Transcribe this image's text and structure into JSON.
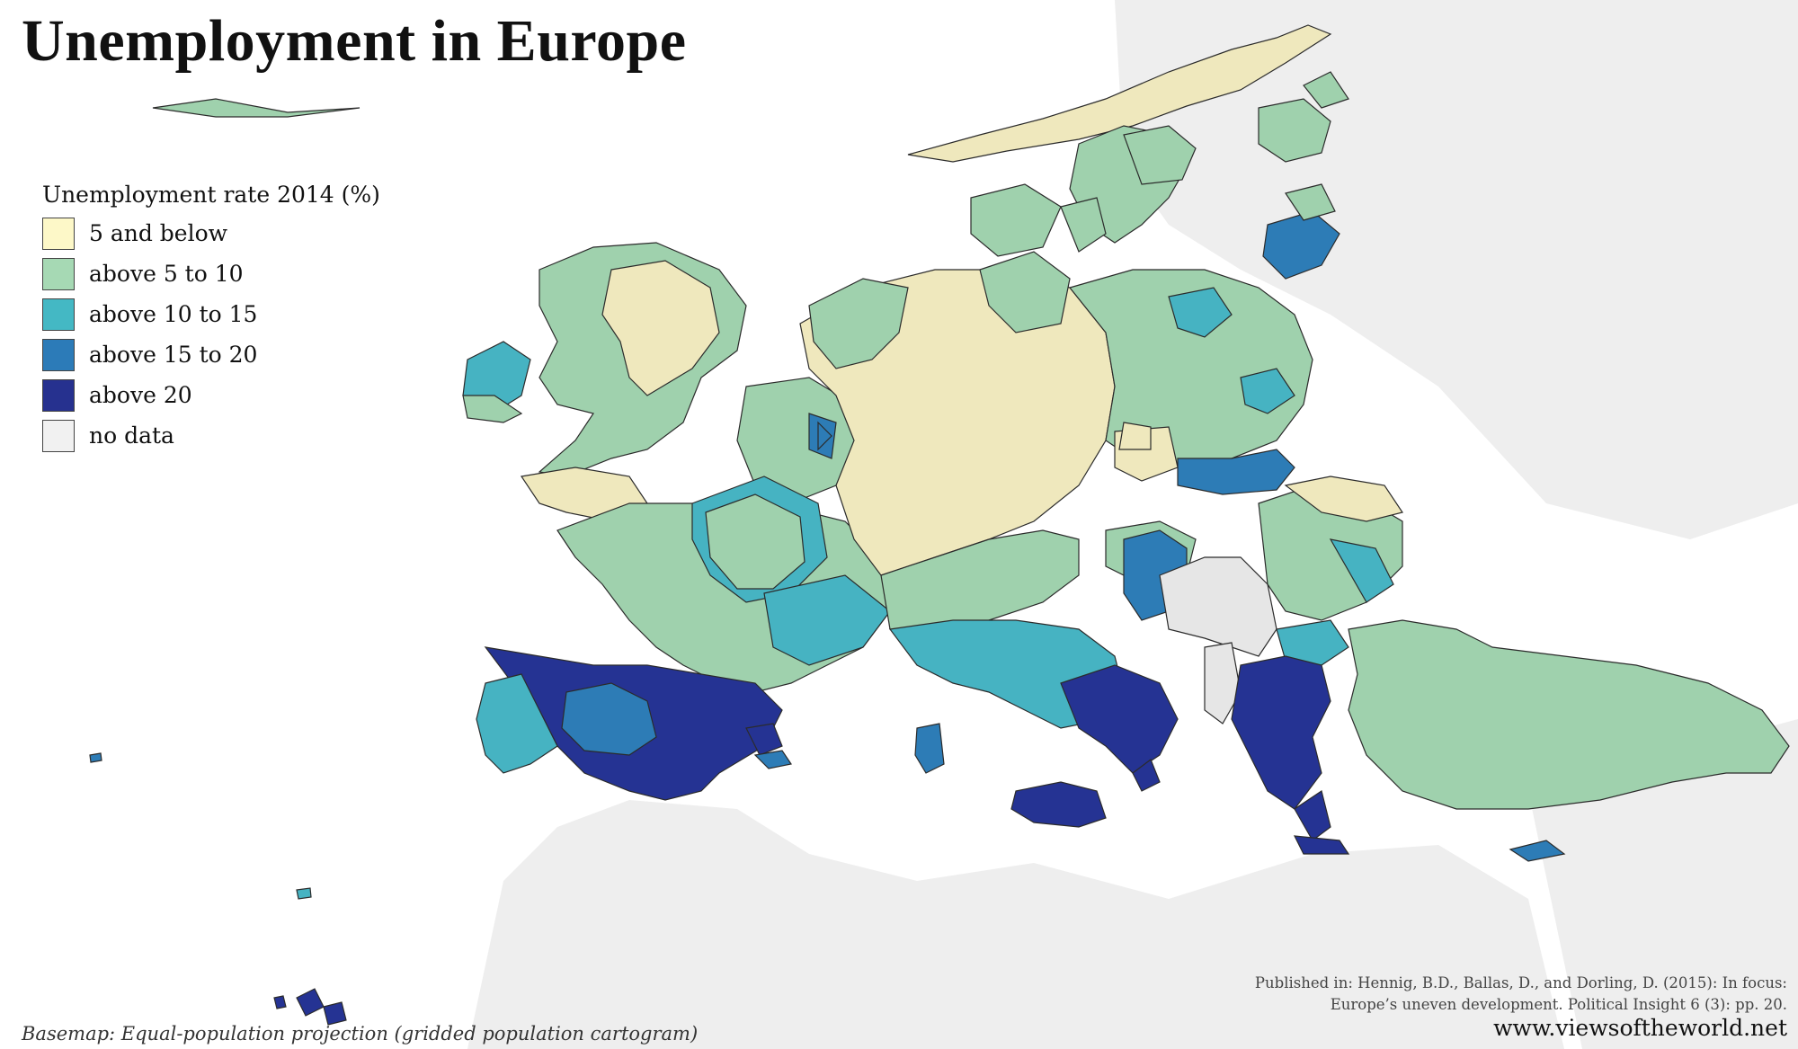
{
  "title": "Unemployment in Europe",
  "legend": {
    "title": "Unemployment rate 2014 (%)",
    "items": [
      {
        "label": "5 and below",
        "color": "#fdf8c8"
      },
      {
        "label": "above 5 to 10",
        "color": "#a6d9b4"
      },
      {
        "label": "above 10 to 15",
        "color": "#44b8c4"
      },
      {
        "label": "above 15 to 20",
        "color": "#2c7bb8"
      },
      {
        "label": "above 20",
        "color": "#26318f"
      },
      {
        "label": "no data",
        "color": "#f1f1f1"
      }
    ]
  },
  "basemap_note": "Basemap: Equal-population projection (gridded population cartogram)",
  "citation": {
    "line1": "Published in: Hennig, B.D., Ballas, D., and Dorling, D. (2015): In focus:",
    "line2": "Europe’s uneven development. Political Insight 6 (3): pp. 20."
  },
  "website": "www.viewsoftheworld.net",
  "colors": {
    "background_land": "#efefef",
    "yellow": "#efe8bd",
    "green": "#9fd1ad",
    "teal": "#46b3c2",
    "blue": "#2d7cb6",
    "navy": "#253393",
    "nodata": "#e6e6e6"
  }
}
